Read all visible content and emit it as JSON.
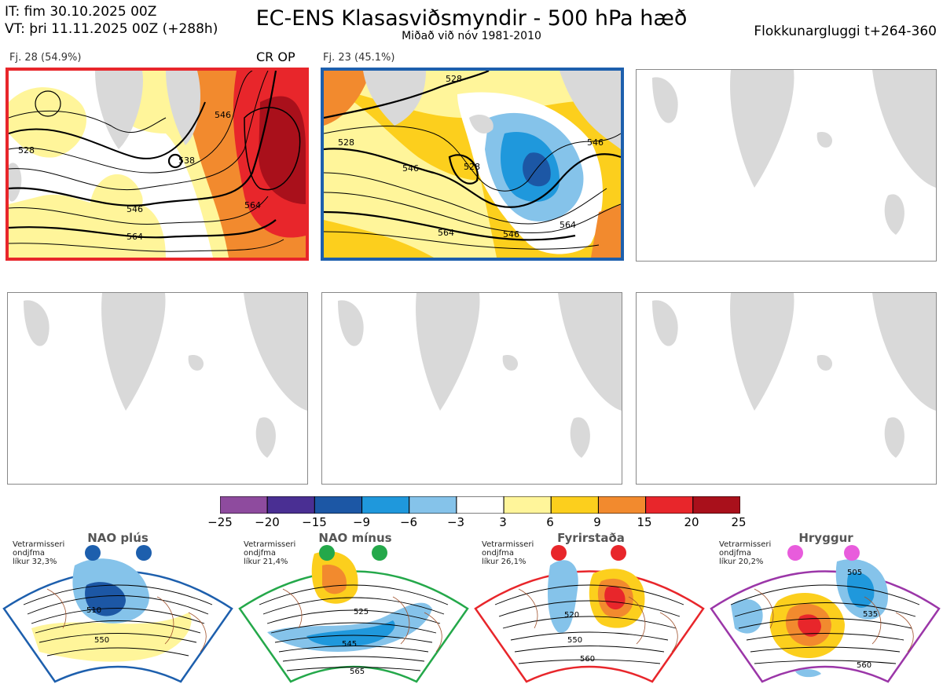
{
  "header": {
    "it_line": "IT: fim 30.10.2025 00Z",
    "vt_line": "VT: þri 11.11.2025 00Z  (+288h)",
    "title": "EC-ENS Klasasviðsmyndir - 500 hPa hæð",
    "subtitle": "Miðað við nóv 1981-2010",
    "window": "Flokkunargluggi t+264-360"
  },
  "panels": [
    {
      "label": "Fj. 28 (54.9%)",
      "tag": "CR OP",
      "border": "#e8262b",
      "contours": [
        "528",
        "538",
        "546",
        "546",
        "564",
        "564"
      ]
    },
    {
      "label": "Fj. 23 (45.1%)",
      "tag": "",
      "border": "#1d5fad",
      "contours": [
        "528",
        "528",
        "528",
        "546",
        "546",
        "546",
        "564",
        "564"
      ]
    }
  ],
  "colorbar": {
    "ticks": [
      "−25",
      "−20",
      "−15",
      "−9",
      "−6",
      "−3",
      "3",
      "6",
      "9",
      "15",
      "20",
      "25"
    ],
    "colors": [
      "#8e4b9e",
      "#4a2f93",
      "#1c57a5",
      "#1f98dc",
      "#85c3ea",
      "#ffffff",
      "#fff59a",
      "#fccf1d",
      "#f28a2e",
      "#e8262b",
      "#a9101b"
    ]
  },
  "regimes": [
    {
      "title": "NAO plús",
      "note": [
        "Vetrarmisseri",
        "ondjfma",
        "líkur 32,3%"
      ],
      "color": "#1d5fad",
      "labels": [
        "510",
        "550"
      ]
    },
    {
      "title": "NAO mínus",
      "note": [
        "Vetrarmisseri",
        "ondjfma",
        "líkur 21,4%"
      ],
      "color": "#24a84a",
      "labels": [
        "525",
        "545",
        "565"
      ]
    },
    {
      "title": "Fyrirstaða",
      "note": [
        "Vetrarmisseri",
        "ondjfma",
        "líkur 26,1%"
      ],
      "color": "#e8262b",
      "labels": [
        "520",
        "550",
        "560"
      ]
    },
    {
      "title": "Hryggur",
      "note": [
        "Vetrarmisseri",
        "ondjfma",
        "líkur 20,2%"
      ],
      "color": "#9b36a8",
      "labels": [
        "505",
        "535",
        "560"
      ]
    }
  ]
}
